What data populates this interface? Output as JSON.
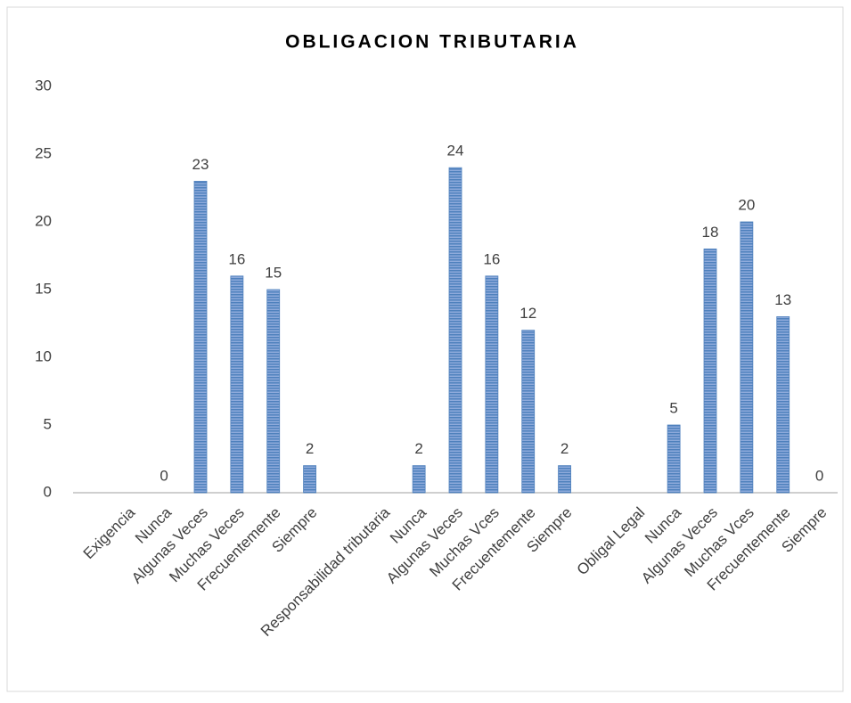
{
  "chart_data": {
    "type": "bar",
    "title": "OBLIGACION TRIBUTARIA",
    "categories": [
      null,
      "Exigencia",
      "Nunca",
      "Algunas Veces",
      "Muchas Veces",
      "Frecuentemente",
      "Siempre",
      null,
      "Responsabilidad tributaria",
      "Nunca",
      "Algunas Veces",
      "Muchas Vces",
      "Frecuentemente",
      "Siempre",
      null,
      "Obligal Legal",
      "Nunca",
      "Algunas Veces",
      "Muchas Vces",
      "Frecuentemente",
      "Siempre"
    ],
    "values": [
      null,
      null,
      0,
      23,
      16,
      15,
      2,
      null,
      null,
      2,
      24,
      16,
      12,
      2,
      null,
      null,
      5,
      18,
      20,
      13,
      0
    ],
    "color": "#4f81bd",
    "ylim": [
      0,
      30
    ],
    "yticks": [
      0,
      5,
      10,
      15,
      20,
      25,
      30
    ],
    "grid": false
  }
}
